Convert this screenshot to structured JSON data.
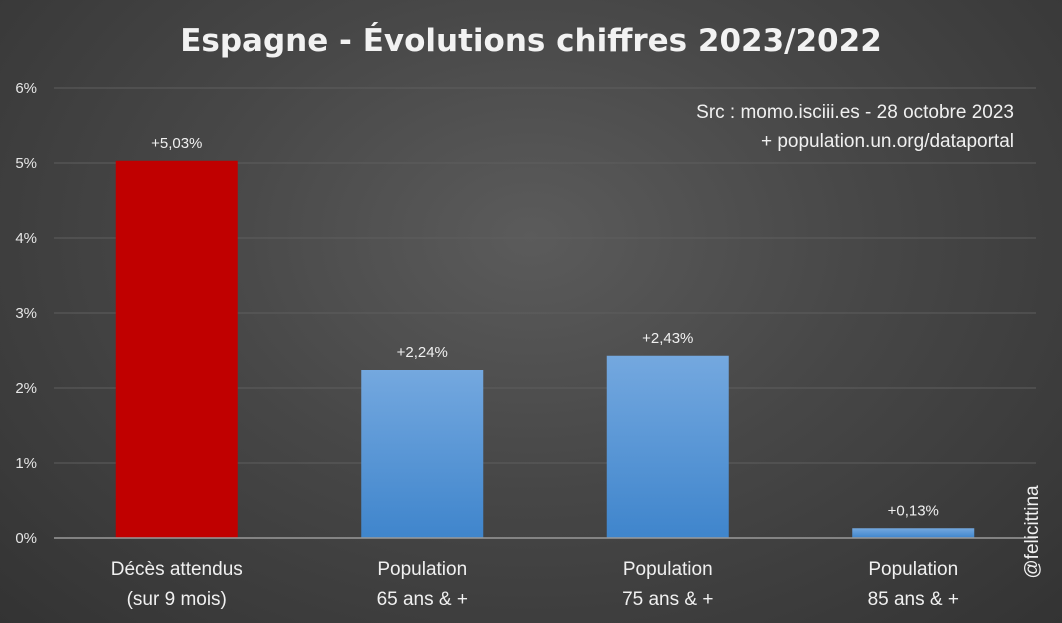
{
  "chart_data": {
    "type": "bar",
    "title": "Espagne - Évolutions chiffres 2023/2022",
    "source_lines": [
      "Src : momo.isciii.es - 28 octobre 2023",
      "+ population.un.org/dataportal"
    ],
    "categories": [
      [
        "Décès attendus",
        "(sur 9 mois)"
      ],
      [
        "Population",
        "65 ans & +"
      ],
      [
        "Population",
        "75 ans & +"
      ],
      [
        "Population",
        "85 ans & +"
      ]
    ],
    "values": [
      5.03,
      2.24,
      2.43,
      0.13
    ],
    "data_labels": [
      "+5,03%",
      "+2,24%",
      "+2,43%",
      "+0,13%"
    ],
    "bar_colors": [
      "#c00000",
      "#5b9bd5",
      "#5b9bd5",
      "#5b9bd5"
    ],
    "ylim": [
      0,
      6
    ],
    "yticks": [
      0,
      1,
      2,
      3,
      4,
      5,
      6
    ],
    "ytick_labels": [
      "0%",
      "1%",
      "2%",
      "3%",
      "4%",
      "5%",
      "6%"
    ],
    "grid": true,
    "legend": "none",
    "xlabel": "",
    "ylabel": ""
  },
  "signature": "@felicittina",
  "colors": {
    "grid": "#5e5e5e",
    "axis": "#9a9a9a"
  }
}
